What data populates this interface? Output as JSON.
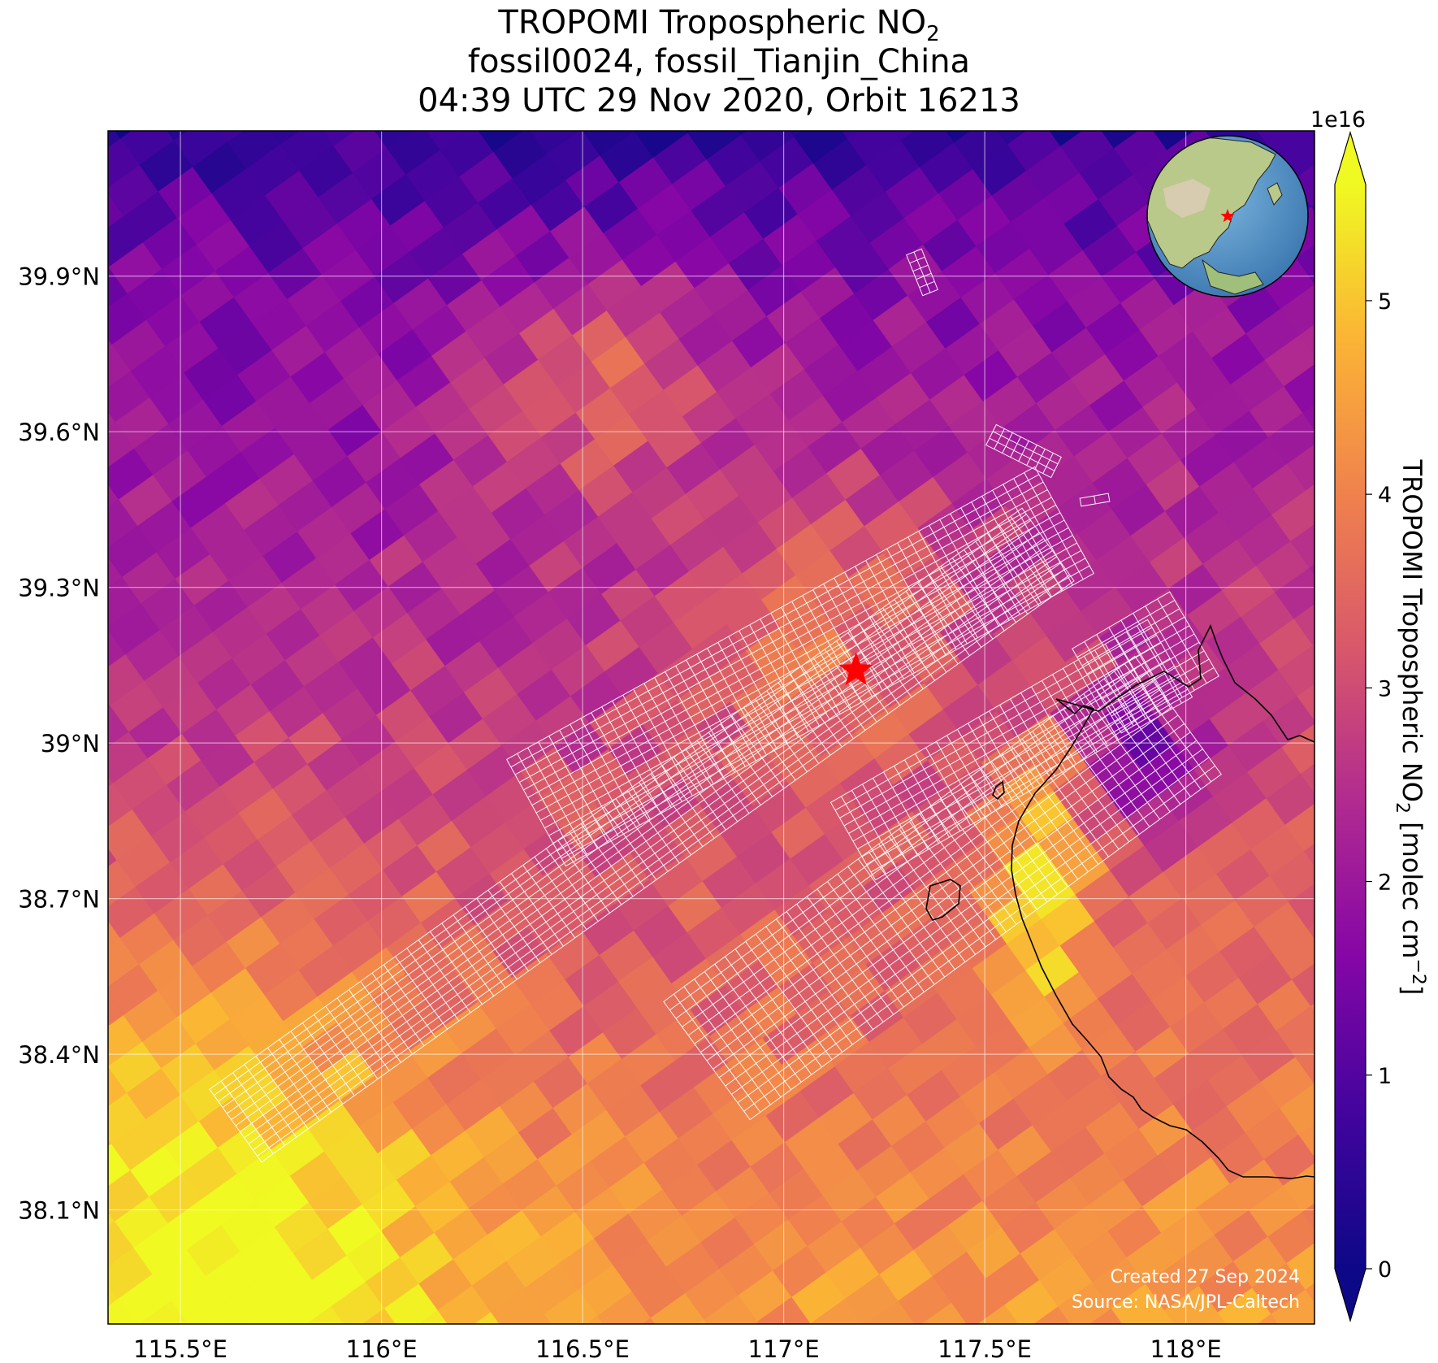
{
  "title": {
    "line1_prefix": "TROPOMI Tropospheric NO",
    "line1_sub": "2",
    "line2": "fossil0024, fossil_Tianjin_China",
    "line3": "04:39 UTC 29 Nov 2020, Orbit 16213"
  },
  "map_data": {
    "type": "heatmap",
    "extent": {
      "lon": [
        115.32,
        118.32
      ],
      "lat": [
        37.88,
        40.18
      ]
    },
    "x_ticks": [
      {
        "value": 115.5,
        "label": "115.5°E"
      },
      {
        "value": 116.0,
        "label": "116°E"
      },
      {
        "value": 116.5,
        "label": "116.5°E"
      },
      {
        "value": 117.0,
        "label": "117°E"
      },
      {
        "value": 117.5,
        "label": "117.5°E"
      },
      {
        "value": 118.0,
        "label": "118°E"
      }
    ],
    "y_ticks": [
      {
        "value": 39.9,
        "label": "39.9°N"
      },
      {
        "value": 39.6,
        "label": "39.6°N"
      },
      {
        "value": 39.3,
        "label": "39.3°N"
      },
      {
        "value": 39.0,
        "label": "39°N"
      },
      {
        "value": 38.7,
        "label": "38.7°N"
      },
      {
        "value": 38.4,
        "label": "38.4°N"
      },
      {
        "value": 38.1,
        "label": "38.1°N"
      }
    ],
    "grid": true,
    "target": {
      "lon": 117.18,
      "lat": 39.14,
      "marker": "star",
      "color": "#ff0000"
    },
    "colormap": "plasma",
    "colorbar": {
      "min": 0,
      "max": 5.6,
      "exponent_label": "1e16",
      "ticks": [
        "0",
        "1",
        "2",
        "3",
        "4",
        "5"
      ],
      "extend": "both",
      "label_prefix": "TROPOMI Tropospheric NO",
      "label_sub": "2",
      "label_mid": " [molec cm",
      "label_sup": "−2",
      "label_suffix": "]"
    },
    "inset": {
      "type": "globe",
      "center_lon": 117,
      "center_lat": 39,
      "marker_color": "#ff0000"
    },
    "target_footprints": "white outlined pixel swaths over Tianjin"
  },
  "credit": {
    "line1": "Created 27 Sep 2024",
    "line2": "Source: NASA/JPL-Caltech"
  }
}
